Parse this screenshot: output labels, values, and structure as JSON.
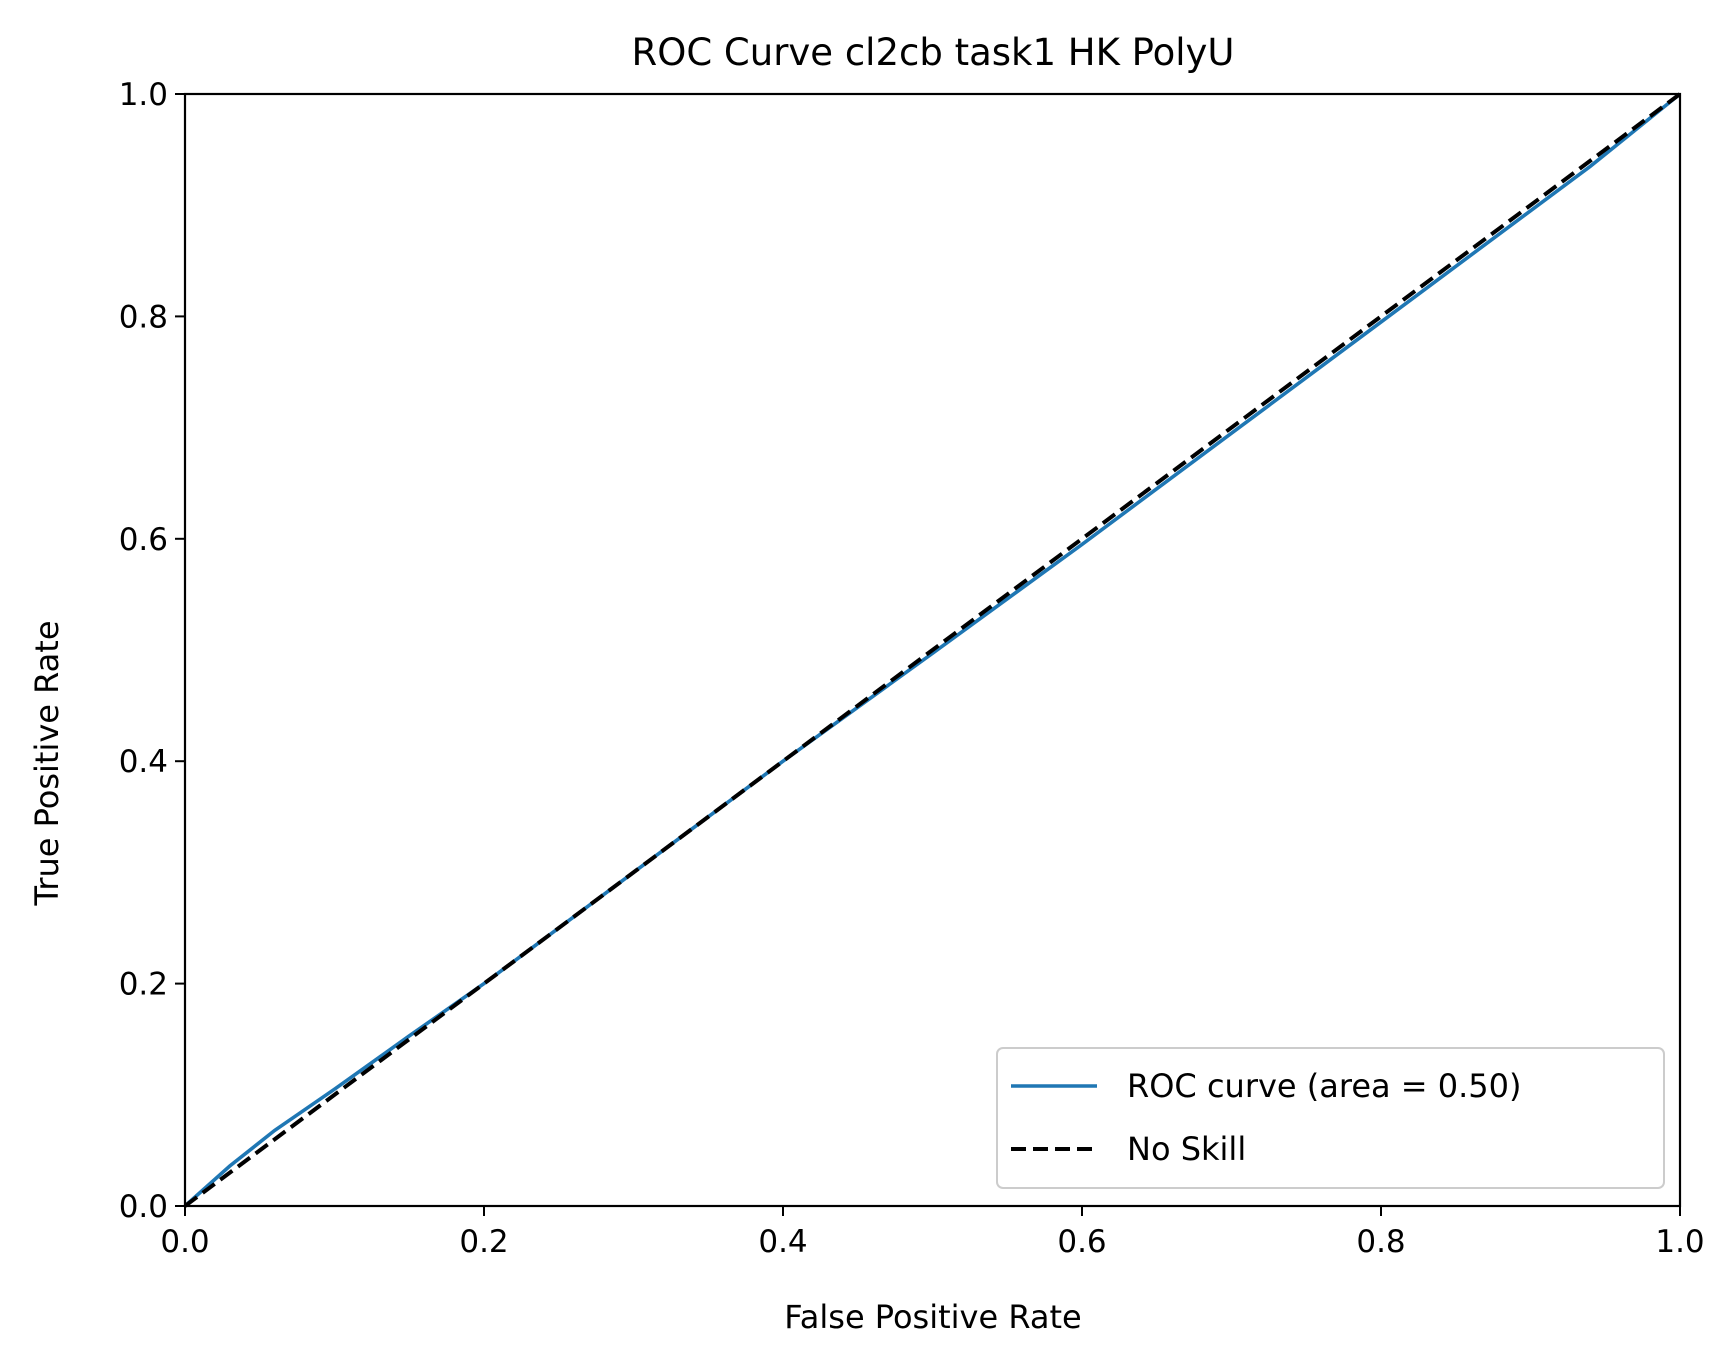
{
  "chart_data": {
    "type": "line",
    "title": "ROC Curve cl2cb task1 HK PolyU",
    "xlabel": "False Positive Rate",
    "ylabel": "True Positive Rate",
    "xlim": [
      0.0,
      1.0
    ],
    "ylim": [
      0.0,
      1.0
    ],
    "xticks": [
      "0.0",
      "0.2",
      "0.4",
      "0.6",
      "0.8",
      "1.0"
    ],
    "yticks": [
      "0.0",
      "0.2",
      "0.4",
      "0.6",
      "0.8",
      "1.0"
    ],
    "grid": false,
    "legend": {
      "placement": "lower-right"
    },
    "series": [
      {
        "name": "ROC curve (area = 0.50)",
        "color": "#1f77b4",
        "style": "solid",
        "x": [
          0.0,
          0.03,
          0.06,
          0.1,
          0.15,
          0.2,
          0.3,
          0.4,
          0.5,
          0.6,
          0.7,
          0.8,
          0.9,
          0.94,
          1.0
        ],
        "y": [
          0.0,
          0.036,
          0.068,
          0.105,
          0.153,
          0.2,
          0.3,
          0.4,
          0.497,
          0.595,
          0.695,
          0.795,
          0.895,
          0.935,
          1.0
        ]
      },
      {
        "name": "No Skill",
        "color": "#000000",
        "style": "dashed",
        "x": [
          0.0,
          1.0
        ],
        "y": [
          0.0,
          1.0
        ]
      }
    ]
  }
}
